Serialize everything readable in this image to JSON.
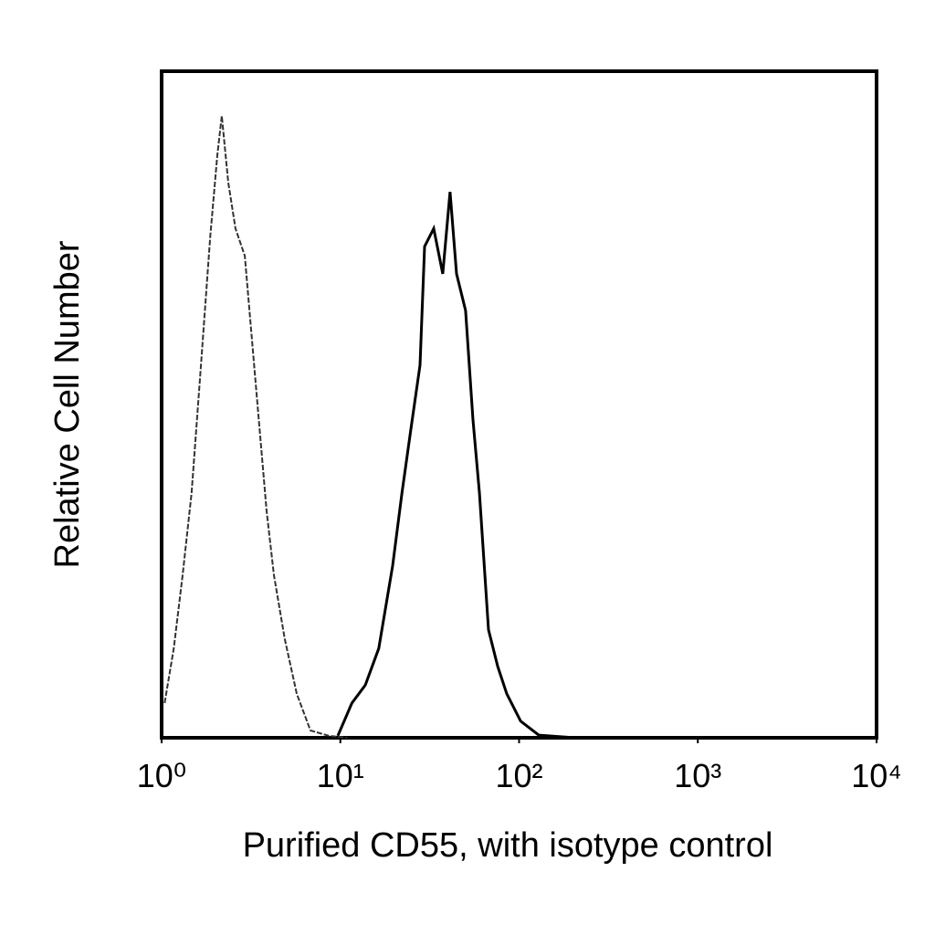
{
  "chart_data": {
    "type": "line",
    "x_label": "Purified CD55, with isotype control",
    "y_label": "Relative Cell Number",
    "xscale": "log",
    "xlim": [
      1,
      10000
    ],
    "xticks": [
      {
        "value": 1,
        "label": "10⁰"
      },
      {
        "value": 10,
        "label": "10¹"
      },
      {
        "value": 100,
        "label": "10²"
      },
      {
        "value": 1000,
        "label": "10³"
      },
      {
        "value": 10000,
        "label": "10⁴"
      }
    ],
    "ylim": [
      0,
      100
    ],
    "series": [
      {
        "color": "#333333",
        "dashed": true,
        "x": [
          1.04,
          1.17,
          1.31,
          1.47,
          1.66,
          1.87,
          2.05,
          2.17,
          2.36,
          2.59,
          2.92,
          3.36,
          3.87,
          4.25,
          4.89,
          5.7,
          6.8,
          8.61,
          10.9
        ],
        "values": [
          5.2,
          13.4,
          24.4,
          36.7,
          55.9,
          75.1,
          87.4,
          93.3,
          83.3,
          76.4,
          72.3,
          53.2,
          34.0,
          24.4,
          14.8,
          6.6,
          1.1,
          0.3,
          0
        ]
      },
      {
        "color": "#000000",
        "dashed": false,
        "x": [
          9.68,
          11.6,
          13.8,
          16.4,
          19.6,
          22.1,
          24.8,
          27.9,
          29.6,
          33.3,
          37.4,
          41.1,
          44.7,
          50.2,
          55.2,
          60.0,
          67.4,
          75.9,
          85.3,
          102,
          129,
          206
        ],
        "values": [
          0.3,
          5.2,
          7.9,
          13.4,
          25.8,
          36.7,
          46.3,
          55.9,
          73.7,
          76.4,
          69.6,
          81.9,
          69.6,
          64.1,
          47.7,
          36.7,
          16.2,
          10.7,
          6.6,
          2.5,
          0.4,
          0
        ]
      }
    ]
  }
}
